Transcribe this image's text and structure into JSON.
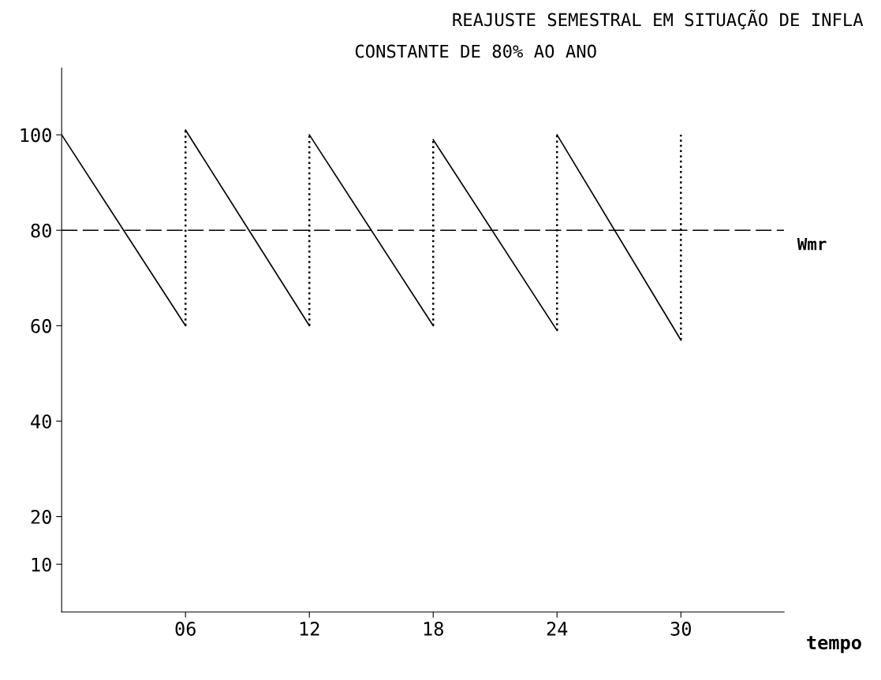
{
  "chart_data": {
    "type": "line",
    "title": "REAJUSTE SEMESTRAL EM SITUAÇÃO DE INFLA",
    "subtitle": "CONSTANTE DE 80% AO ANO",
    "xlabel": "tempo",
    "xlim": [
      0,
      35
    ],
    "ylim": [
      0,
      114
    ],
    "xticks": [
      {
        "value": 6,
        "label": "06"
      },
      12,
      18,
      24,
      30
    ],
    "yticks": [
      10,
      20,
      40,
      60,
      80,
      100
    ],
    "series": [
      {
        "color": "#000000",
        "line_style": "solid",
        "x": [
          0,
          6
        ],
        "values": [
          100,
          60
        ]
      },
      {
        "color": "#000000",
        "line_style": "solid",
        "x": [
          6,
          12
        ],
        "values": [
          101,
          60
        ]
      },
      {
        "color": "#000000",
        "line_style": "solid",
        "x": [
          12,
          18
        ],
        "values": [
          100,
          60
        ]
      },
      {
        "color": "#000000",
        "line_style": "solid",
        "x": [
          18,
          24
        ],
        "values": [
          99,
          59
        ]
      },
      {
        "color": "#000000",
        "line_style": "solid",
        "x": [
          24,
          30
        ],
        "values": [
          100,
          57
        ]
      },
      {
        "color": "#000000",
        "line_style": "dotted",
        "x": [
          6,
          6
        ],
        "values": [
          60,
          101
        ]
      },
      {
        "color": "#000000",
        "line_style": "dotted",
        "x": [
          12,
          12
        ],
        "values": [
          60,
          100
        ]
      },
      {
        "color": "#000000",
        "line_style": "dotted",
        "x": [
          18,
          18
        ],
        "values": [
          60,
          99
        ]
      },
      {
        "color": "#000000",
        "line_style": "dotted",
        "x": [
          24,
          24
        ],
        "values": [
          59,
          100
        ]
      },
      {
        "color": "#000000",
        "line_style": "dotted",
        "x": [
          30,
          30
        ],
        "values": [
          57,
          100
        ]
      }
    ],
    "ref_lines": [
      {
        "axis": "y",
        "value": 80,
        "label": "Wmr",
        "color": "#000000",
        "line_style": "dashed"
      }
    ],
    "grid": false,
    "marker": "none"
  }
}
